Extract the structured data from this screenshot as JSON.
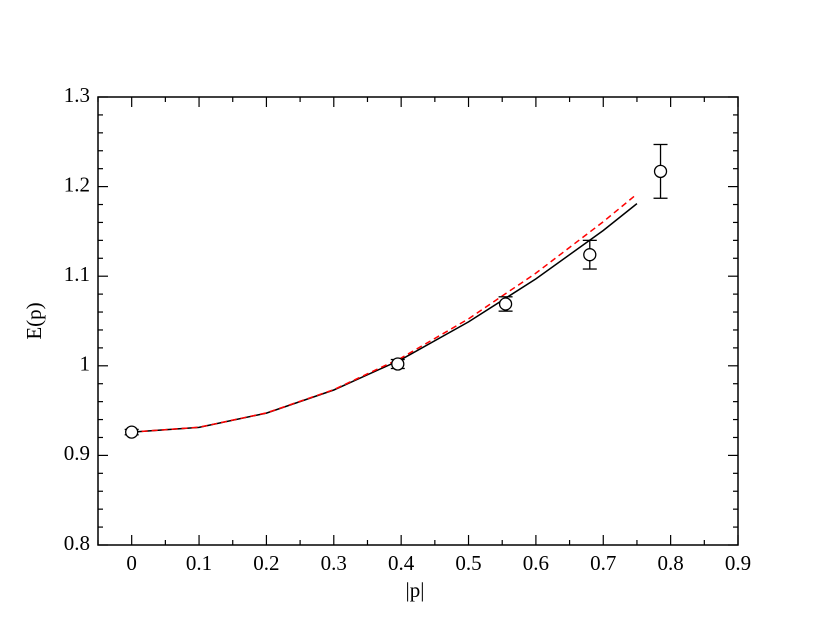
{
  "chart_data": {
    "type": "scatter",
    "x_label": "|p|",
    "y_label": "E(p)",
    "xlim": [
      -0.05,
      0.9
    ],
    "ylim": [
      0.8,
      1.3
    ],
    "xticks": [
      0,
      0.1,
      0.2,
      0.3,
      0.4,
      0.5,
      0.6,
      0.7,
      0.8,
      0.9
    ],
    "yticks": [
      0.8,
      0.9,
      1,
      1.1,
      1.2,
      1.3
    ],
    "xminor": [
      -0.05,
      0.05,
      0.15,
      0.25,
      0.35,
      0.45,
      0.55,
      0.65,
      0.75,
      0.85
    ],
    "yminor": [
      0.82,
      0.84,
      0.86,
      0.88,
      0.92,
      0.94,
      0.96,
      0.98,
      1.02,
      1.04,
      1.06,
      1.08,
      1.12,
      1.14,
      1.16,
      1.18,
      1.22,
      1.24,
      1.26,
      1.28
    ],
    "points": {
      "color": "#000000",
      "x": [
        0,
        0.395,
        0.555,
        0.68,
        0.785
      ],
      "values": [
        0.926,
        1.002,
        1.069,
        1.124,
        1.217
      ],
      "errors": [
        0.003,
        0.005,
        0.008,
        0.016,
        0.03
      ]
    },
    "curves": [
      {
        "color": "#000000",
        "dash": false,
        "x": [
          0,
          0.1,
          0.2,
          0.3,
          0.4,
          0.5,
          0.6,
          0.7,
          0.75
        ],
        "values": [
          0.926,
          0.9313,
          0.9472,
          0.973,
          1.007,
          1.049,
          1.097,
          1.151,
          1.181
        ]
      },
      {
        "color": "#ff0000",
        "dash": true,
        "x": [
          0,
          0.1,
          0.2,
          0.3,
          0.4,
          0.5,
          0.6,
          0.7,
          0.75
        ],
        "values": [
          0.926,
          0.9314,
          0.9474,
          0.9734,
          1.0087,
          1.0524,
          1.1034,
          1.1608,
          1.1917
        ]
      }
    ]
  }
}
